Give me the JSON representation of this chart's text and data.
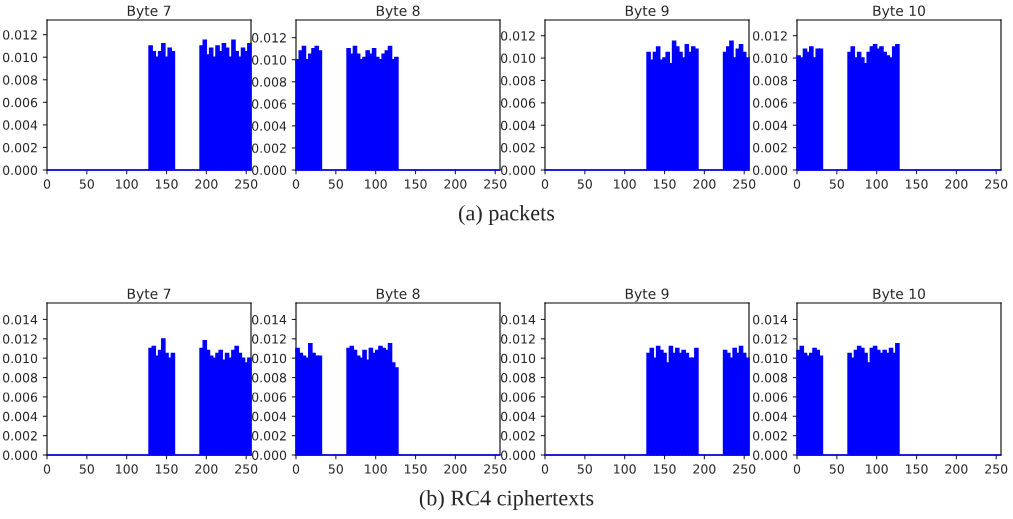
{
  "chart_data": [
    {
      "type": "histogram",
      "title": "Byte 7",
      "color": "#0000ff",
      "annotations": [
        "(a) packets"
      ],
      "xlim": [
        0,
        256
      ],
      "xticks": [
        0,
        50,
        100,
        150,
        200,
        250
      ],
      "ylim": [
        0,
        0.0133
      ],
      "yticks": [
        {
          "value": 0,
          "label": "0.000"
        },
        {
          "value": 0.002,
          "label": "0.002"
        },
        {
          "value": 0.004,
          "label": "0.004"
        },
        {
          "value": 0.006,
          "label": "0.006"
        },
        {
          "value": 0.008,
          "label": "0.008"
        },
        {
          "value": 0.01,
          "label": "0.010"
        },
        {
          "value": 0.012,
          "label": "0.012"
        }
      ],
      "bins": [
        0,
        128,
        132,
        136,
        140,
        144,
        148,
        152,
        156,
        160,
        192,
        196,
        200,
        204,
        208,
        212,
        216,
        220,
        224,
        228,
        232,
        236,
        240,
        244,
        248,
        252,
        256
      ],
      "values": [
        0,
        0.011,
        0.0105,
        0.01,
        0.0105,
        0.0112,
        0.01,
        0.0108,
        0.0105,
        0,
        0.011,
        0.0115,
        0.0102,
        0.0108,
        0.01,
        0.011,
        0.0105,
        0.0112,
        0.0108,
        0.01,
        0.0115,
        0.0105,
        0.01,
        0.0108,
        0.0105,
        0.0112
      ]
    },
    {
      "type": "histogram",
      "title": "Byte 8",
      "color": "#0000ff",
      "xlim": [
        0,
        256
      ],
      "xticks": [
        0,
        50,
        100,
        150,
        200,
        250
      ],
      "ylim": [
        0,
        0.0136
      ],
      "yticks": [
        {
          "value": 0,
          "label": "0.000"
        },
        {
          "value": 0.002,
          "label": "0.002"
        },
        {
          "value": 0.004,
          "label": "0.004"
        },
        {
          "value": 0.006,
          "label": "0.006"
        },
        {
          "value": 0.008,
          "label": "0.008"
        },
        {
          "value": 0.01,
          "label": "0.010"
        },
        {
          "value": 0.012,
          "label": "0.012"
        }
      ],
      "bins": [
        0,
        4,
        8,
        12,
        16,
        20,
        24,
        28,
        32,
        64,
        68,
        72,
        76,
        80,
        84,
        88,
        92,
        96,
        100,
        104,
        108,
        112,
        116,
        120,
        124,
        128,
        256
      ],
      "values": [
        0.01,
        0.0108,
        0.0112,
        0.01,
        0.0105,
        0.011,
        0.0112,
        0.0108,
        0,
        0.011,
        0.0105,
        0.0112,
        0.0105,
        0.01,
        0.0102,
        0.0108,
        0.0105,
        0.011,
        0.0102,
        0.01,
        0.0105,
        0.0108,
        0.0112,
        0.01,
        0.0102,
        0
      ]
    },
    {
      "type": "histogram",
      "title": "Byte 9",
      "color": "#0000ff",
      "xlim": [
        0,
        256
      ],
      "xticks": [
        0,
        50,
        100,
        150,
        200,
        250
      ],
      "ylim": [
        0,
        0.0134
      ],
      "yticks": [
        {
          "value": 0,
          "label": "0.000"
        },
        {
          "value": 0.002,
          "label": "0.002"
        },
        {
          "value": 0.004,
          "label": "0.004"
        },
        {
          "value": 0.006,
          "label": "0.006"
        },
        {
          "value": 0.008,
          "label": "0.008"
        },
        {
          "value": 0.01,
          "label": "0.010"
        },
        {
          "value": 0.012,
          "label": "0.012"
        }
      ],
      "bins": [
        0,
        128,
        132,
        136,
        140,
        144,
        148,
        152,
        156,
        160,
        164,
        168,
        172,
        176,
        180,
        184,
        188,
        192,
        224,
        228,
        232,
        236,
        240,
        244,
        248,
        252,
        256
      ],
      "values": [
        0,
        0.0105,
        0.0098,
        0.0105,
        0.011,
        0.0098,
        0.01,
        0.0105,
        0.0095,
        0.0115,
        0.011,
        0.0105,
        0.01,
        0.0112,
        0.0105,
        0.011,
        0.0108,
        0,
        0.0105,
        0.011,
        0.0115,
        0.01,
        0.0108,
        0.0112,
        0.0105,
        0.01
      ]
    },
    {
      "type": "histogram",
      "title": "Byte 10",
      "color": "#0000ff",
      "xlim": [
        0,
        256
      ],
      "xticks": [
        0,
        50,
        100,
        150,
        200,
        250
      ],
      "ylim": [
        0,
        0.0134
      ],
      "yticks": [
        {
          "value": 0,
          "label": "0.000"
        },
        {
          "value": 0.002,
          "label": "0.002"
        },
        {
          "value": 0.004,
          "label": "0.004"
        },
        {
          "value": 0.006,
          "label": "0.006"
        },
        {
          "value": 0.008,
          "label": "0.008"
        },
        {
          "value": 0.01,
          "label": "0.010"
        },
        {
          "value": 0.012,
          "label": "0.012"
        }
      ],
      "bins": [
        0,
        4,
        8,
        12,
        16,
        20,
        24,
        28,
        32,
        64,
        68,
        72,
        76,
        80,
        84,
        88,
        92,
        96,
        100,
        104,
        108,
        112,
        116,
        120,
        124,
        128,
        256
      ],
      "values": [
        0.0102,
        0.01,
        0.0108,
        0.0105,
        0.011,
        0.01,
        0.0108,
        0.0108,
        0,
        0.0105,
        0.011,
        0.01,
        0.0105,
        0.01,
        0.0095,
        0.0105,
        0.011,
        0.0112,
        0.0108,
        0.011,
        0.0105,
        0.0102,
        0.01,
        0.011,
        0.0112,
        0
      ]
    },
    {
      "type": "histogram",
      "title": "Byte 7",
      "color": "#0000ff",
      "annotations": [
        "(b) RC4 ciphertexts"
      ],
      "xlim": [
        0,
        256
      ],
      "xticks": [
        0,
        50,
        100,
        150,
        200,
        250
      ],
      "ylim": [
        0,
        0.0157
      ],
      "yticks": [
        {
          "value": 0,
          "label": "0.000"
        },
        {
          "value": 0.002,
          "label": "0.002"
        },
        {
          "value": 0.004,
          "label": "0.004"
        },
        {
          "value": 0.006,
          "label": "0.006"
        },
        {
          "value": 0.008,
          "label": "0.008"
        },
        {
          "value": 0.01,
          "label": "0.010"
        },
        {
          "value": 0.012,
          "label": "0.012"
        },
        {
          "value": 0.014,
          "label": "0.014"
        }
      ],
      "bins": [
        0,
        128,
        132,
        136,
        140,
        144,
        148,
        152,
        156,
        160,
        192,
        196,
        200,
        204,
        208,
        212,
        216,
        220,
        224,
        228,
        232,
        236,
        240,
        244,
        248,
        252,
        256
      ],
      "values": [
        0,
        0.011,
        0.0112,
        0.0102,
        0.0108,
        0.012,
        0.0105,
        0.01,
        0.0105,
        0,
        0.011,
        0.0118,
        0.0108,
        0.0102,
        0.01,
        0.0105,
        0.0108,
        0.0098,
        0.0105,
        0.01,
        0.0108,
        0.0112,
        0.0105,
        0.01,
        0.0095,
        0.01
      ]
    },
    {
      "type": "histogram",
      "title": "Byte 8",
      "color": "#0000ff",
      "xlim": [
        0,
        256
      ],
      "xticks": [
        0,
        50,
        100,
        150,
        200,
        250
      ],
      "ylim": [
        0,
        0.0157
      ],
      "yticks": [
        {
          "value": 0,
          "label": "0.000"
        },
        {
          "value": 0.002,
          "label": "0.002"
        },
        {
          "value": 0.004,
          "label": "0.004"
        },
        {
          "value": 0.006,
          "label": "0.006"
        },
        {
          "value": 0.008,
          "label": "0.008"
        },
        {
          "value": 0.01,
          "label": "0.010"
        },
        {
          "value": 0.012,
          "label": "0.012"
        },
        {
          "value": 0.014,
          "label": "0.014"
        }
      ],
      "bins": [
        0,
        4,
        8,
        12,
        16,
        20,
        24,
        28,
        32,
        64,
        68,
        72,
        76,
        80,
        84,
        88,
        92,
        96,
        100,
        104,
        108,
        112,
        116,
        120,
        124,
        128,
        256
      ],
      "values": [
        0.011,
        0.0105,
        0.0102,
        0.01,
        0.0115,
        0.0105,
        0.0102,
        0.0102,
        0,
        0.011,
        0.0112,
        0.0108,
        0.0102,
        0.01,
        0.0108,
        0.0098,
        0.011,
        0.0105,
        0.0108,
        0.0112,
        0.011,
        0.0108,
        0.0115,
        0.0095,
        0.009,
        0
      ]
    },
    {
      "type": "histogram",
      "title": "Byte 9",
      "color": "#0000ff",
      "xlim": [
        0,
        256
      ],
      "xticks": [
        0,
        50,
        100,
        150,
        200,
        250
      ],
      "ylim": [
        0,
        0.0157
      ],
      "yticks": [
        {
          "value": 0,
          "label": "0.000"
        },
        {
          "value": 0.002,
          "label": "0.002"
        },
        {
          "value": 0.004,
          "label": "0.004"
        },
        {
          "value": 0.006,
          "label": "0.006"
        },
        {
          "value": 0.008,
          "label": "0.008"
        },
        {
          "value": 0.01,
          "label": "0.010"
        },
        {
          "value": 0.012,
          "label": "0.012"
        },
        {
          "value": 0.014,
          "label": "0.014"
        }
      ],
      "bins": [
        0,
        128,
        132,
        136,
        140,
        144,
        148,
        152,
        156,
        160,
        164,
        168,
        172,
        176,
        180,
        184,
        188,
        192,
        224,
        228,
        232,
        236,
        240,
        244,
        248,
        252,
        256
      ],
      "values": [
        0,
        0.0105,
        0.011,
        0.01,
        0.0112,
        0.0108,
        0.0105,
        0.0095,
        0.0112,
        0.0105,
        0.011,
        0.0105,
        0.0108,
        0.0105,
        0.01,
        0.01,
        0.011,
        0,
        0.0108,
        0.0105,
        0.01,
        0.011,
        0.0105,
        0.0112,
        0.0105,
        0.01
      ]
    },
    {
      "type": "histogram",
      "title": "Byte 10",
      "color": "#0000ff",
      "xlim": [
        0,
        256
      ],
      "xticks": [
        0,
        50,
        100,
        150,
        200,
        250
      ],
      "ylim": [
        0,
        0.0157
      ],
      "yticks": [
        {
          "value": 0,
          "label": "0.000"
        },
        {
          "value": 0.002,
          "label": "0.002"
        },
        {
          "value": 0.004,
          "label": "0.004"
        },
        {
          "value": 0.006,
          "label": "0.006"
        },
        {
          "value": 0.008,
          "label": "0.008"
        },
        {
          "value": 0.01,
          "label": "0.010"
        },
        {
          "value": 0.012,
          "label": "0.012"
        },
        {
          "value": 0.014,
          "label": "0.014"
        }
      ],
      "bins": [
        0,
        4,
        8,
        12,
        16,
        20,
        24,
        28,
        32,
        64,
        68,
        72,
        76,
        80,
        84,
        88,
        92,
        96,
        100,
        104,
        108,
        112,
        116,
        120,
        124,
        128,
        256
      ],
      "values": [
        0.0108,
        0.0112,
        0.0105,
        0.0102,
        0.0105,
        0.011,
        0.0108,
        0.0102,
        0,
        0.0105,
        0.01,
        0.0108,
        0.0112,
        0.011,
        0.0105,
        0.0095,
        0.011,
        0.0112,
        0.0108,
        0.0105,
        0.0108,
        0.0105,
        0.011,
        0.0105,
        0.0115,
        0
      ]
    }
  ]
}
